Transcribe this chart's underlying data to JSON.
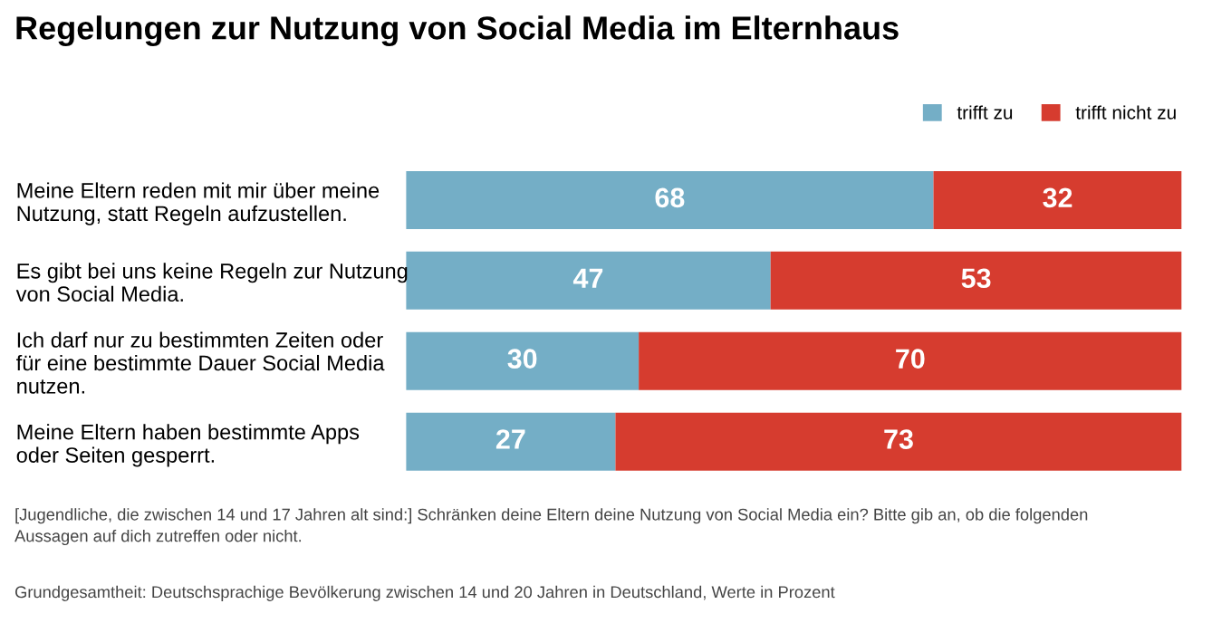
{
  "chart_data": {
    "type": "bar",
    "orientation": "horizontal",
    "stacked": true,
    "title": "Regelungen zur Nutzung von Social Media im Elternhaus",
    "categories": [
      "Meine Eltern reden mit mir über meine\nNutzung, statt Regeln aufzustellen.",
      "Es gibt bei uns keine Regeln zur Nutzung\nvon Social Media.",
      "Ich darf nur zu bestimmten Zeiten oder\nfür eine bestimmte Dauer Social Media\nnutzen.",
      "Meine Eltern haben bestimmte Apps\noder Seiten gesperrt."
    ],
    "series": [
      {
        "name": "trifft zu",
        "color": "#74aec6",
        "values": [
          68,
          47,
          30,
          27
        ]
      },
      {
        "name": "trifft nicht zu",
        "color": "#d63c2f",
        "values": [
          32,
          53,
          70,
          73
        ]
      }
    ],
    "data_labels": true,
    "legend": "top right",
    "grid": false,
    "tick_labels": "y",
    "annotations": [
      "[Jugendliche, die zwischen 14 und 17 Jahren alt sind:] Schränken deine Eltern deine Nutzung von Social Media ein? Bitte gib an, ob die folgenden\nAussagen auf dich zutreffen oder nicht.",
      "Grundgesamtheit: Deutschsprachige Bevölkerung zwischen 14 und 20 Jahren in Deutschland, Werte in Prozent"
    ]
  }
}
